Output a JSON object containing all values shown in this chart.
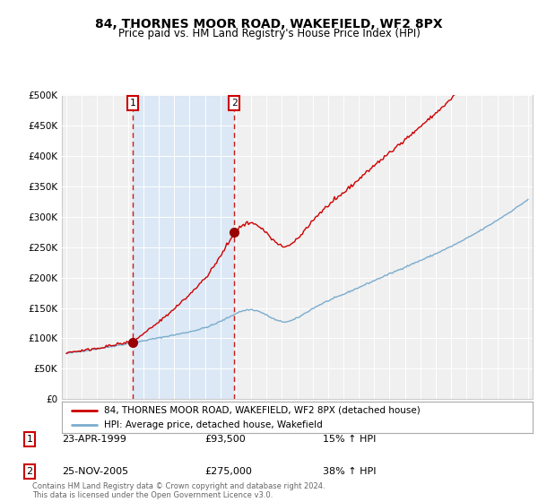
{
  "title": "84, THORNES MOOR ROAD, WAKEFIELD, WF2 8PX",
  "subtitle": "Price paid vs. HM Land Registry's House Price Index (HPI)",
  "red_line_label": "84, THORNES MOOR ROAD, WAKEFIELD, WF2 8PX (detached house)",
  "blue_line_label": "HPI: Average price, detached house, Wakefield",
  "footer": "Contains HM Land Registry data © Crown copyright and database right 2024.\nThis data is licensed under the Open Government Licence v3.0.",
  "sale1_date": "23-APR-1999",
  "sale1_price": 93500,
  "sale2_date": "25-NOV-2005",
  "sale2_price": 275000,
  "sale1_hpi_text": "15% ↑ HPI",
  "sale2_hpi_text": "38% ↑ HPI",
  "ylim": [
    0,
    500000
  ],
  "yticks": [
    0,
    50000,
    100000,
    150000,
    200000,
    250000,
    300000,
    350000,
    400000,
    450000,
    500000
  ],
  "ytick_labels": [
    "£0",
    "£50K",
    "£100K",
    "£150K",
    "£200K",
    "£250K",
    "£300K",
    "£350K",
    "£400K",
    "£450K",
    "£500K"
  ],
  "red_color": "#cc0000",
  "blue_color": "#7aacce",
  "shade_color": "#dce8f5",
  "grid_color": "#cccccc",
  "plot_bg": "#f0f0f0",
  "sale1_t": 1999.3,
  "sale2_t": 2005.9
}
